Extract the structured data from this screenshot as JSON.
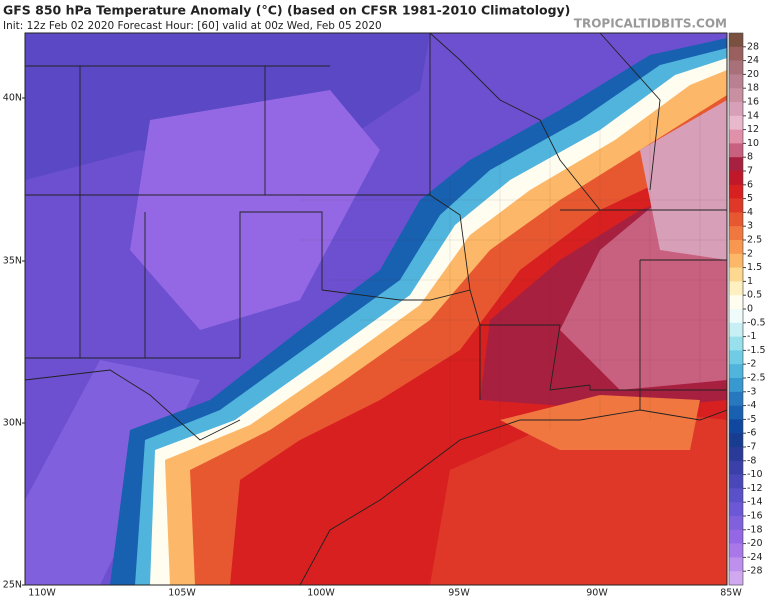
{
  "header": {
    "title": "GFS 850 hPa Temperature Anomaly (°C) (based on CFSR 1981-2010 Climatology)",
    "subtitle": "Init: 12z Feb 02 2020   Forecast Hour: [60]   valid at 00z Wed, Feb 05 2020",
    "site": "TROPICALTIDBITS.COM"
  },
  "map": {
    "lat_labels": [
      "40N",
      "35N",
      "30N",
      "25N"
    ],
    "lon_labels": [
      "110W",
      "105W",
      "100W",
      "95W",
      "90W",
      "85W"
    ]
  },
  "colorbar": {
    "ticks": [
      28,
      24,
      20,
      18,
      16,
      14,
      12,
      10,
      8,
      7,
      6,
      5,
      4,
      3,
      2.5,
      2,
      1.5,
      1,
      0.5,
      0,
      -0.5,
      -1,
      -1.5,
      -2,
      -2.5,
      -3,
      -4,
      -5,
      -6,
      -7,
      -8,
      -10,
      -12,
      -14,
      -16,
      -18,
      -20,
      -24,
      -28
    ],
    "colors": [
      "#7a5040",
      "#9a6060",
      "#a87078",
      "#b88090",
      "#c890a0",
      "#d8a0b8",
      "#e8b8cc",
      "#e090a8",
      "#c86080",
      "#a82040",
      "#c01828",
      "#d82020",
      "#e03828",
      "#e85830",
      "#f07840",
      "#f89850",
      "#fcb868",
      "#fdd890",
      "#fef0c0",
      "#fffcf0",
      "#f0fcfc",
      "#c8f0f4",
      "#98e0ec",
      "#70cce4",
      "#50b4dc",
      "#3898d0",
      "#2878c0",
      "#1860b0",
      "#1048a0",
      "#183c90",
      "#2a3a98",
      "#3a40a8",
      "#4a48b8",
      "#5a50c8",
      "#6c58d4",
      "#8060dc",
      "#9468e4",
      "#a878e8",
      "#bc90ec",
      "#d0a8f0"
    ]
  }
}
